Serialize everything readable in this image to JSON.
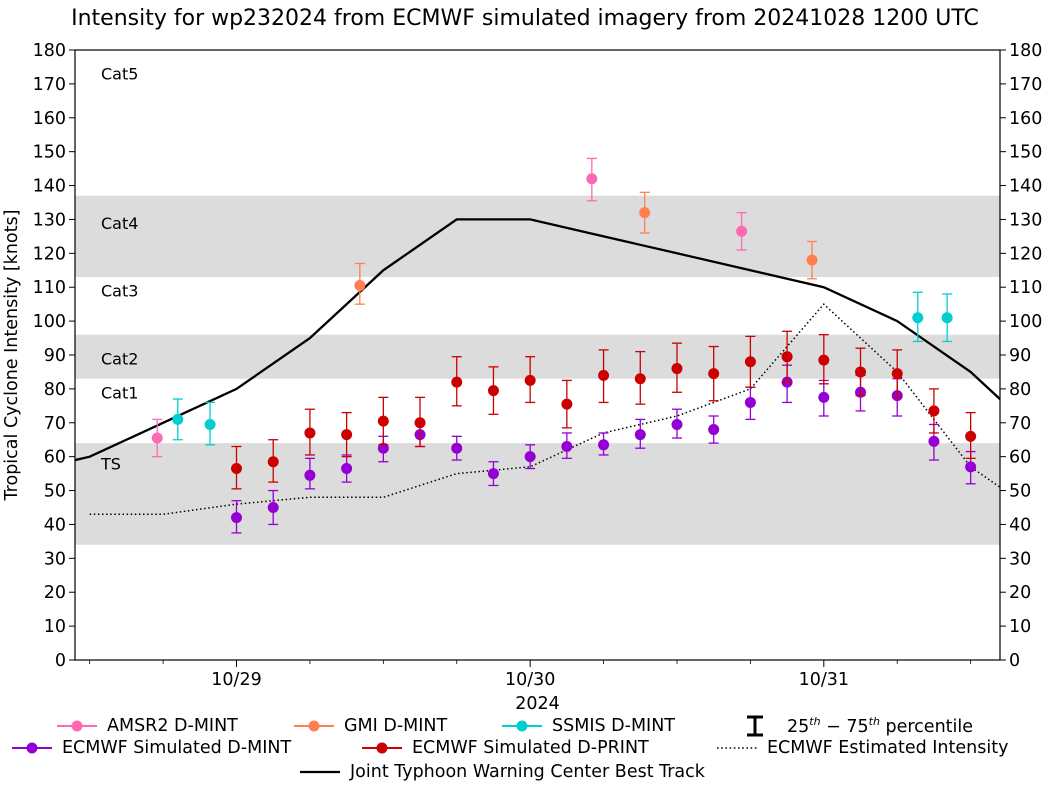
{
  "chart_data": {
    "type": "scatter",
    "title": "Intensity for wp232024 from ECMWF simulated imagery from 20241028 1200 UTC",
    "xlabel": "2024",
    "ylabel": "Tropical Cyclone Intensity [knots]",
    "ylim": [
      0,
      180
    ],
    "yticks": [
      0,
      10,
      20,
      30,
      40,
      50,
      60,
      70,
      80,
      90,
      100,
      110,
      120,
      130,
      140,
      150,
      160,
      170,
      180
    ],
    "xlim_days": [
      28.45,
      31.6
    ],
    "xticks": [
      {
        "label": "10/29",
        "day": 29
      },
      {
        "label": "10/30",
        "day": 30
      },
      {
        "label": "10/31",
        "day": 31
      }
    ],
    "minor_xticks_days": [
      28.5,
      28.75,
      29.25,
      29.5,
      29.75,
      30.25,
      30.5,
      30.75,
      31.25,
      31.5
    ],
    "category_bands": [
      {
        "name": "TS",
        "lo": 34,
        "hi": 64,
        "shaded": true
      },
      {
        "name": "Cat1",
        "lo": 64,
        "hi": 83,
        "shaded": false
      },
      {
        "name": "Cat2",
        "lo": 83,
        "hi": 96,
        "shaded": true
      },
      {
        "name": "Cat3",
        "lo": 96,
        "hi": 113,
        "shaded": false
      },
      {
        "name": "Cat4",
        "lo": 113,
        "hi": 137,
        "shaded": true
      },
      {
        "name": "Cat5",
        "lo": 137,
        "hi": 180,
        "shaded": false
      }
    ],
    "band_labels": [
      {
        "text": "TS",
        "y": 58
      },
      {
        "text": "Cat1",
        "y": 79
      },
      {
        "text": "Cat2",
        "y": 89
      },
      {
        "text": "Cat3",
        "y": 109
      },
      {
        "text": "Cat4",
        "y": 129
      },
      {
        "text": "Cat5",
        "y": 173
      }
    ],
    "series": [
      {
        "name": "Joint Typhoon Warning Center Best Track",
        "kind": "line",
        "color": "#000000",
        "style": "solid",
        "points": [
          [
            28.45,
            59
          ],
          [
            28.5,
            60
          ],
          [
            28.75,
            70
          ],
          [
            29.0,
            80
          ],
          [
            29.25,
            95
          ],
          [
            29.5,
            115
          ],
          [
            29.75,
            130
          ],
          [
            30.0,
            130
          ],
          [
            30.25,
            125
          ],
          [
            30.5,
            120
          ],
          [
            30.75,
            115
          ],
          [
            31.0,
            110
          ],
          [
            31.25,
            100
          ],
          [
            31.5,
            85
          ],
          [
            31.6,
            77
          ]
        ]
      },
      {
        "name": "ECMWF Estimated Intensity",
        "kind": "line",
        "color": "#000000",
        "style": "dotted",
        "points": [
          [
            28.5,
            43
          ],
          [
            28.75,
            43
          ],
          [
            29.0,
            46
          ],
          [
            29.25,
            48
          ],
          [
            29.5,
            48
          ],
          [
            29.75,
            55
          ],
          [
            30.0,
            57
          ],
          [
            30.25,
            67
          ],
          [
            30.5,
            72
          ],
          [
            30.75,
            80
          ],
          [
            31.0,
            105
          ],
          [
            31.25,
            85
          ],
          [
            31.5,
            57
          ],
          [
            31.6,
            51
          ]
        ]
      },
      {
        "name": "AMSR2 D-MINT",
        "kind": "errorbar",
        "color": "#ff69b4",
        "points": [
          [
            28.73,
            65.5,
            60,
            71
          ],
          [
            30.21,
            142,
            135.5,
            148
          ],
          [
            30.72,
            126.5,
            121,
            132
          ]
        ]
      },
      {
        "name": "GMI D-MINT",
        "kind": "errorbar",
        "color": "#ff7f50",
        "points": [
          [
            29.42,
            110.5,
            105,
            117
          ],
          [
            30.39,
            132,
            126,
            138
          ],
          [
            30.96,
            118,
            112.5,
            123.5
          ]
        ]
      },
      {
        "name": "SSMIS D-MINT",
        "kind": "errorbar",
        "color": "#00ced1",
        "points": [
          [
            28.8,
            71,
            65,
            77
          ],
          [
            28.91,
            69.5,
            63.5,
            76
          ],
          [
            31.32,
            101,
            94,
            108.5
          ],
          [
            31.42,
            101,
            94,
            108
          ]
        ]
      },
      {
        "name": "ECMWF Simulated D-MINT",
        "kind": "errorbar",
        "color": "#9400d3",
        "points": [
          [
            29.0,
            42,
            37.5,
            47
          ],
          [
            29.125,
            45,
            40,
            50
          ],
          [
            29.25,
            54.5,
            50.5,
            59.5
          ],
          [
            29.375,
            56.5,
            52.5,
            60.5
          ],
          [
            29.5,
            62.5,
            58.5,
            66
          ],
          [
            29.625,
            66.5,
            63,
            70
          ],
          [
            29.75,
            62.5,
            59,
            66
          ],
          [
            29.875,
            55,
            51.5,
            58.5
          ],
          [
            30.0,
            60,
            56.5,
            63.5
          ],
          [
            30.125,
            63,
            59.5,
            67
          ],
          [
            30.25,
            63.5,
            60.5,
            67
          ],
          [
            30.375,
            66.5,
            62.5,
            71
          ],
          [
            30.5,
            69.5,
            65.5,
            74
          ],
          [
            30.625,
            68,
            64,
            72
          ],
          [
            30.75,
            76,
            71,
            80.5
          ],
          [
            30.875,
            82,
            76,
            87
          ],
          [
            31.0,
            77.5,
            72,
            82.5
          ],
          [
            31.125,
            79,
            73.5,
            84
          ],
          [
            31.25,
            78,
            72,
            83
          ],
          [
            31.375,
            64.5,
            59,
            69.5
          ],
          [
            31.5,
            57,
            52,
            61.5
          ]
        ]
      },
      {
        "name": "ECMWF Simulated D-PRINT",
        "kind": "errorbar",
        "color": "#cc0000",
        "points": [
          [
            29.0,
            56.5,
            50.5,
            63
          ],
          [
            29.125,
            58.5,
            52.5,
            65
          ],
          [
            29.25,
            67,
            60.5,
            74
          ],
          [
            29.375,
            66.5,
            60,
            73
          ],
          [
            29.5,
            70.5,
            63.5,
            77.5
          ],
          [
            29.625,
            70,
            63,
            77.5
          ],
          [
            29.75,
            82,
            75,
            89.5
          ],
          [
            29.875,
            79.5,
            72.5,
            86.5
          ],
          [
            30.0,
            82.5,
            76,
            89.5
          ],
          [
            30.125,
            75.5,
            68.5,
            82.5
          ],
          [
            30.25,
            84,
            76,
            91.5
          ],
          [
            30.375,
            83,
            75.5,
            91
          ],
          [
            30.5,
            86,
            79,
            93.5
          ],
          [
            30.625,
            84.5,
            76.5,
            92.5
          ],
          [
            30.75,
            88,
            80.5,
            95.5
          ],
          [
            30.875,
            89.5,
            82,
            97
          ],
          [
            31.0,
            88.5,
            81.5,
            96
          ],
          [
            31.125,
            85,
            78,
            92
          ],
          [
            31.25,
            84.5,
            77.5,
            91.5
          ],
          [
            31.375,
            73.5,
            67,
            80
          ],
          [
            31.5,
            66,
            59.5,
            73
          ]
        ]
      }
    ]
  },
  "legend": {
    "amsr2": "AMSR2 D-MINT",
    "gmi": "GMI D-MINT",
    "ssmis": "SSMIS D-MINT",
    "percentile_prefix": "25",
    "percentile_sup1": "th",
    "percentile_mid": " − 75",
    "percentile_sup2": "th",
    "percentile_suffix": " percentile",
    "ecmwf_dmint": "ECMWF Simulated D-MINT",
    "ecmwf_dprint": "ECMWF Simulated D-PRINT",
    "ecmwf_est": "ECMWF Estimated Intensity",
    "jtwc": "Joint Typhoon Warning Center Best Track",
    "colors": {
      "amsr2": "#ff69b4",
      "gmi": "#ff7f50",
      "ssmis": "#00ced1",
      "dmint": "#9400d3",
      "dprint": "#cc0000"
    }
  }
}
